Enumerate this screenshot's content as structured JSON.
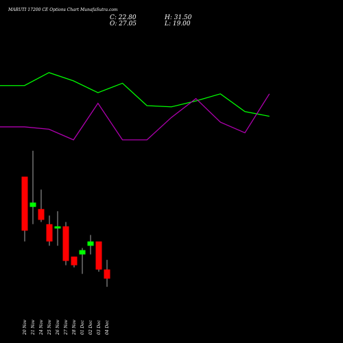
{
  "header": {
    "title": "MARUTI 17200  CE Options  Chart MunafaSutra.com"
  },
  "ohlc": {
    "close_label": "C: 22.80",
    "open_label": "O: 27.05",
    "high_label": "H: 31.50",
    "low_label": "L: 19.00"
  },
  "colors": {
    "background": "#000000",
    "up_candle": "#00ff00",
    "down_candle": "#ff0000",
    "wick": "#aaaaaa",
    "green_line": "#00ff00",
    "magenta_line": "#b000b0",
    "text": "#ffffff"
  },
  "chart_data": [
    {
      "type": "candlestick",
      "categories": [
        "20 Nov",
        "21 Nov",
        "24 Nov",
        "25 Nov",
        "26 Nov",
        "27 Nov",
        "28 Nov",
        "01 Dec",
        "02 Dec",
        "03 Dec",
        "04 Dec"
      ],
      "candles": [
        {
          "open": 70,
          "high": 70,
          "low": 40,
          "close": 45
        },
        {
          "open": 56,
          "high": 82,
          "low": 48,
          "close": 58
        },
        {
          "open": 55,
          "high": 64,
          "low": 49,
          "close": 50
        },
        {
          "open": 48,
          "high": 52,
          "low": 38,
          "close": 40
        },
        {
          "open": 46,
          "high": 54,
          "low": 38,
          "close": 47
        },
        {
          "open": 47,
          "high": 49,
          "low": 29,
          "close": 31
        },
        {
          "open": 33,
          "high": 33,
          "low": 28,
          "close": 29
        },
        {
          "open": 34,
          "high": 37,
          "low": 25,
          "close": 36
        },
        {
          "open": 38,
          "high": 43,
          "low": 34,
          "close": 40
        },
        {
          "open": 40,
          "high": 40,
          "low": 26,
          "close": 27
        },
        {
          "open": 27.05,
          "high": 31.5,
          "low": 19,
          "close": 22.8
        }
      ]
    },
    {
      "type": "line",
      "x_positions": [
        0,
        1,
        2,
        3,
        4,
        5,
        6,
        7,
        8,
        9,
        10,
        11
      ],
      "series": [
        {
          "color": "#00ff00",
          "values": [
            67,
            67,
            78,
            71,
            61,
            69,
            50,
            49,
            54,
            60,
            45,
            41
          ]
        },
        {
          "color": "#b000b0",
          "values": [
            32,
            32,
            30,
            21,
            52,
            21,
            21,
            40,
            56,
            36,
            27,
            60
          ]
        }
      ],
      "ylim": [
        0,
        100
      ]
    }
  ]
}
